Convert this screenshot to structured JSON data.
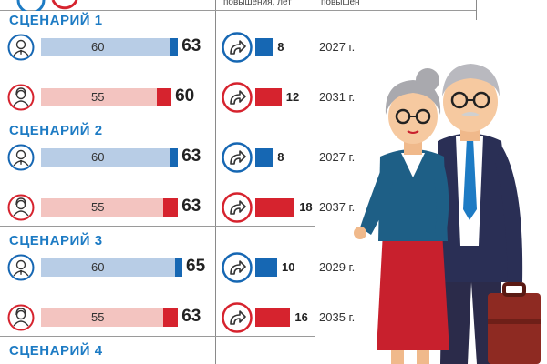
{
  "header": {
    "col_step": "повышения, лет",
    "col_year": "повышен"
  },
  "chart_data": {
    "type": "bar",
    "series_keys": [
      "men",
      "women"
    ],
    "colors": {
      "men_bar": "#b8cde6",
      "men_end": "#1667b3",
      "women_bar": "#f3c4c0",
      "women_end": "#d6232e",
      "title": "#1d7bc4"
    },
    "scenarios": [
      {
        "title": "СЦЕНАРИЙ 1",
        "rows": [
          {
            "group": "men",
            "icon": "man-avatar-icon",
            "current": 60,
            "target": 63,
            "step": 8,
            "year": "2027 г."
          },
          {
            "group": "women",
            "icon": "woman-avatar-icon",
            "current": 55,
            "target": 60,
            "step": 12,
            "year": "2031 г."
          }
        ]
      },
      {
        "title": "СЦЕНАРИЙ 2",
        "rows": [
          {
            "group": "men",
            "icon": "man-avatar-icon",
            "current": 60,
            "target": 63,
            "step": 8,
            "year": "2027 г."
          },
          {
            "group": "women",
            "icon": "woman-avatar-icon",
            "current": 55,
            "target": 63,
            "step": 18,
            "year": "2037 г."
          }
        ]
      },
      {
        "title": "СЦЕНАРИЙ 3",
        "rows": [
          {
            "group": "men",
            "icon": "man-avatar-icon",
            "current": 60,
            "target": 65,
            "step": 10,
            "year": "2029 г."
          },
          {
            "group": "women",
            "icon": "woman-avatar-icon",
            "current": 55,
            "target": 63,
            "step": 16,
            "year": "2035 г."
          }
        ]
      },
      {
        "title": "СЦЕНАРИЙ 4",
        "rows": []
      }
    ]
  }
}
